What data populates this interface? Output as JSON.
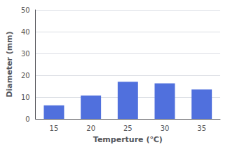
{
  "chart_data": {
    "type": "bar",
    "xlabel": "Temperture (℃)",
    "ylabel": "Diameter (mm)",
    "categories": [
      "15",
      "20",
      "25",
      "30",
      "35"
    ],
    "values": [
      6.2,
      10.7,
      17.0,
      16.3,
      13.5
    ],
    "ylim": [
      0,
      50
    ],
    "yticks": [
      0,
      10,
      20,
      30,
      40,
      50
    ],
    "grid": true
  }
}
